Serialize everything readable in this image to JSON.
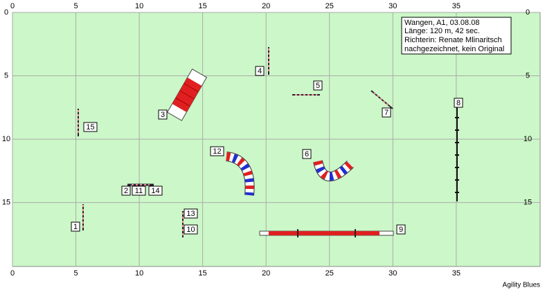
{
  "axes": {
    "x_ticks": [
      0,
      5,
      10,
      15,
      20,
      25,
      30,
      35
    ],
    "y_ticks": [
      0,
      5,
      10,
      15
    ]
  },
  "info": [
    "Wangen, A1, 03.08.08",
    "Länge: 120 m, 42 sec.",
    "Richterin: Renate Mlinaritsch",
    "nachgezeichnet, kein Original"
  ],
  "obstacles": [
    {
      "label": "1"
    },
    {
      "label": "2"
    },
    {
      "label": "11"
    },
    {
      "label": "14"
    },
    {
      "label": "3"
    },
    {
      "label": "4"
    },
    {
      "label": "5"
    },
    {
      "label": "6"
    },
    {
      "label": "7"
    },
    {
      "label": "8"
    },
    {
      "label": "9"
    },
    {
      "label": "10"
    },
    {
      "label": "13"
    },
    {
      "label": "12"
    },
    {
      "label": "15"
    }
  ],
  "footer": "Agility Blues"
}
